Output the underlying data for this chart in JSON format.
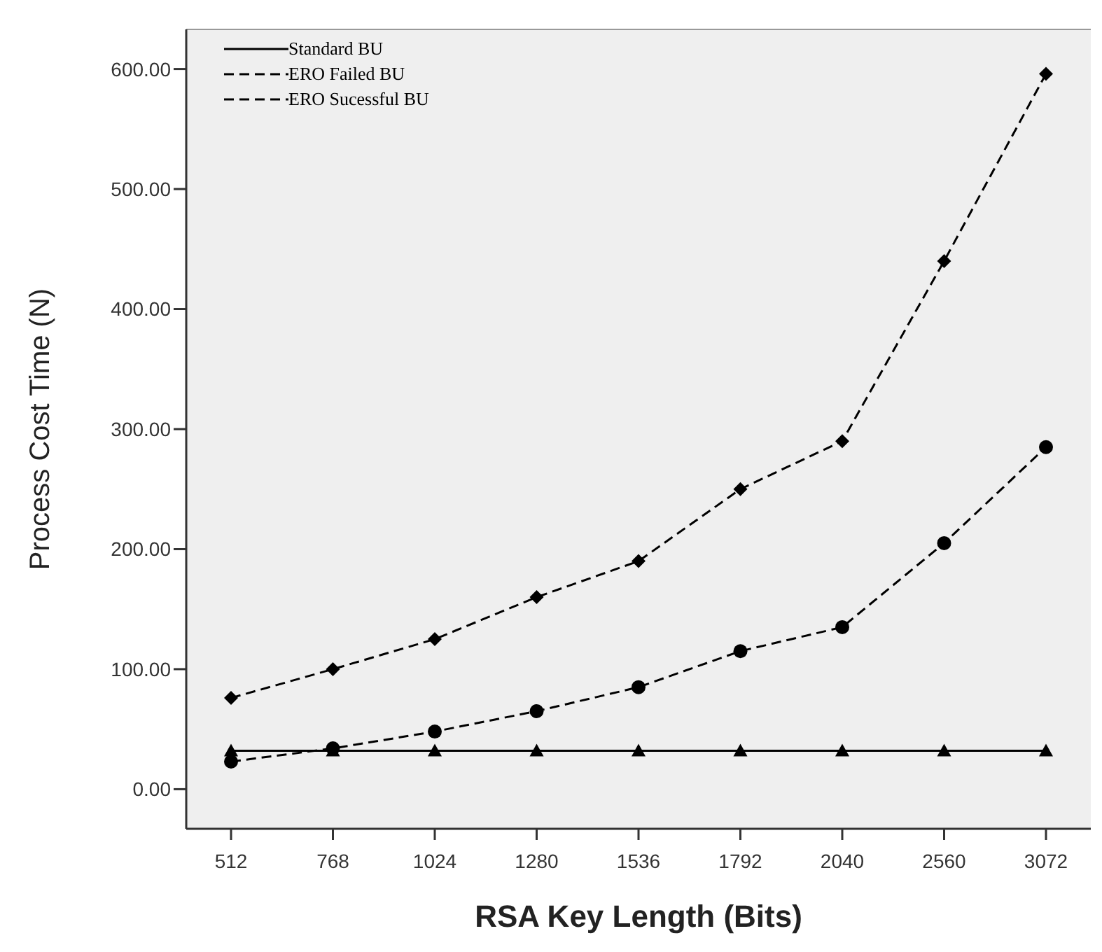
{
  "chart_data": {
    "type": "line",
    "xlabel": "RSA Key Length (Bits)",
    "ylabel": "Process Cost Time (N)",
    "categories": [
      "512",
      "768",
      "1024",
      "1280",
      "1536",
      "1792",
      "2040",
      "2560",
      "3072"
    ],
    "series": [
      {
        "name": "Standard BU",
        "color": "#000000",
        "marker": "triangle",
        "line_style": "solid",
        "values": [
          32,
          32,
          32,
          32,
          32,
          32,
          32,
          32,
          32
        ]
      },
      {
        "name": "ERO Failed BU",
        "color": "#000000",
        "marker": "circle",
        "line_style": "dashed",
        "values": [
          23,
          34,
          48,
          65,
          85,
          115,
          135,
          205,
          285
        ]
      },
      {
        "name": "ERO Sucessful BU",
        "color": "#000000",
        "marker": "diamond",
        "line_style": "dashed",
        "values": [
          76,
          100,
          125,
          160,
          190,
          250,
          290,
          440,
          596
        ]
      }
    ],
    "ylim": [
      -33,
      633
    ],
    "yticks": [
      {
        "value": 0,
        "label": "0.00"
      },
      {
        "value": 100,
        "label": "100.00"
      },
      {
        "value": 200,
        "label": "200.00"
      },
      {
        "value": 300,
        "label": "300.00"
      },
      {
        "value": 400,
        "label": "400.00"
      },
      {
        "value": 500,
        "label": "500.00"
      },
      {
        "value": 600,
        "label": "600.00"
      }
    ],
    "grid": false,
    "legend": "top left"
  }
}
